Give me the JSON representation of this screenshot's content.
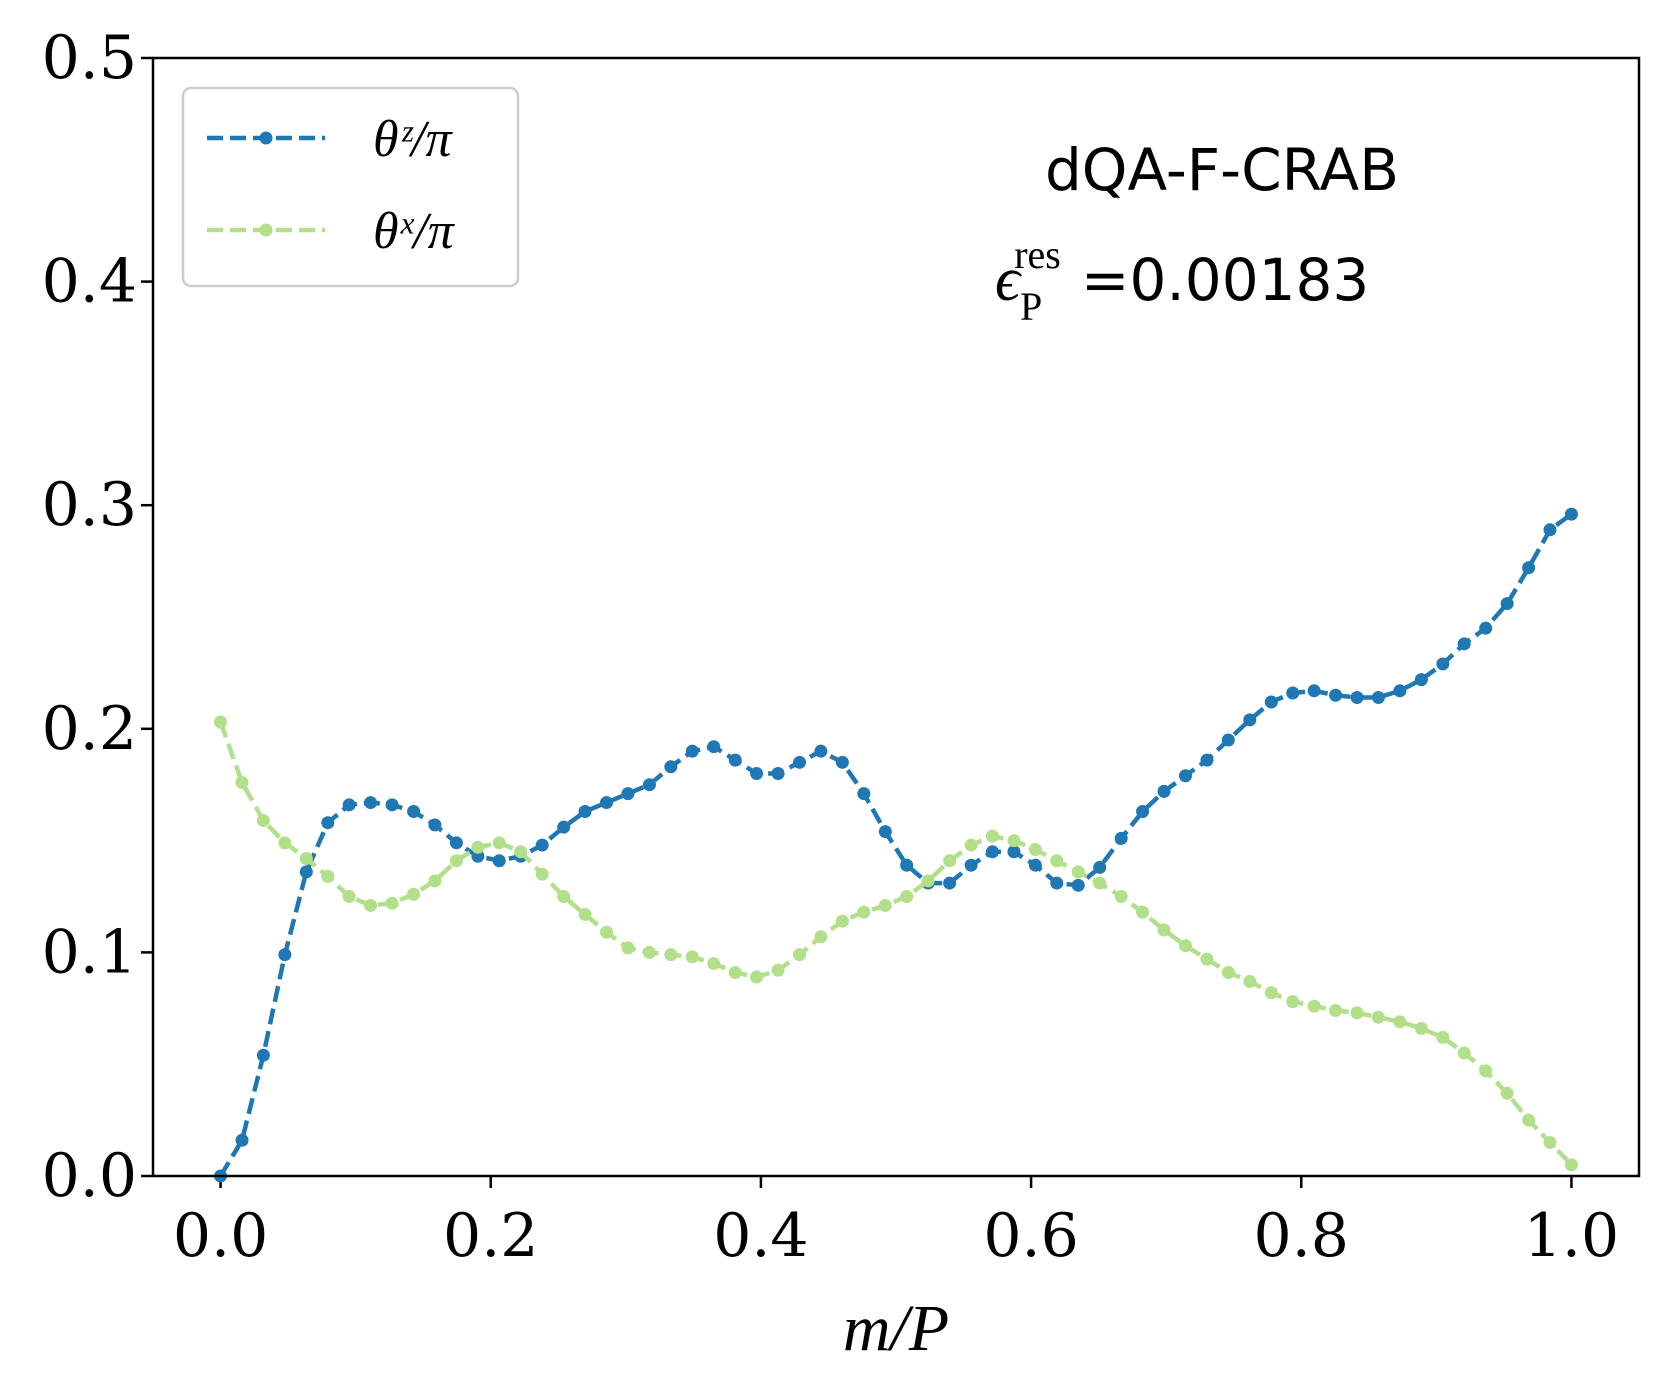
{
  "chart_data": {
    "type": "line",
    "xlabel": "m/P",
    "annotations": [
      {
        "text": "dQA-F-CRAB"
      },
      {
        "symbol": "ϵ",
        "subscript": "P",
        "superscript": "res",
        "text": "=0.00183"
      }
    ],
    "x": [
      0,
      0.0159,
      0.0317,
      0.0476,
      0.0635,
      0.0794,
      0.0952,
      0.1111,
      0.127,
      0.1429,
      0.1587,
      0.1746,
      0.1905,
      0.2063,
      0.2222,
      0.2381,
      0.254,
      0.2698,
      0.2857,
      0.3016,
      0.3175,
      0.3333,
      0.3492,
      0.3651,
      0.381,
      0.3968,
      0.4127,
      0.4286,
      0.4444,
      0.4603,
      0.4762,
      0.4921,
      0.5079,
      0.5238,
      0.5397,
      0.5556,
      0.5714,
      0.5873,
      0.6032,
      0.619,
      0.6349,
      0.6508,
      0.6667,
      0.6825,
      0.6984,
      0.7143,
      0.7302,
      0.746,
      0.7619,
      0.7778,
      0.7937,
      0.8095,
      0.8254,
      0.8413,
      0.8571,
      0.873,
      0.8889,
      0.9048,
      0.9206,
      0.9365,
      0.9524,
      0.9683,
      0.9841,
      1
    ],
    "series": [
      {
        "name": "θᶻ/π",
        "color": "#1f77b4",
        "values": [
          0,
          0.016,
          0.054,
          0.099,
          0.136,
          0.158,
          0.166,
          0.167,
          0.166,
          0.163,
          0.157,
          0.149,
          0.143,
          0.141,
          0.143,
          0.148,
          0.156,
          0.163,
          0.167,
          0.171,
          0.175,
          0.183,
          0.19,
          0.192,
          0.186,
          0.18,
          0.18,
          0.185,
          0.19,
          0.185,
          0.171,
          0.154,
          0.139,
          0.131,
          0.131,
          0.139,
          0.145,
          0.145,
          0.139,
          0.131,
          0.13,
          0.138,
          0.151,
          0.163,
          0.172,
          0.179,
          0.186,
          0.195,
          0.204,
          0.212,
          0.216,
          0.217,
          0.215,
          0.214,
          0.214,
          0.217,
          0.222,
          0.229,
          0.238,
          0.245,
          0.256,
          0.272,
          0.289,
          0.296
        ]
      },
      {
        "name": "θˣ/π",
        "color": "#b2df8a",
        "values": [
          0.203,
          0.176,
          0.159,
          0.149,
          0.142,
          0.134,
          0.125,
          0.121,
          0.122,
          0.126,
          0.132,
          0.141,
          0.147,
          0.149,
          0.145,
          0.135,
          0.125,
          0.117,
          0.109,
          0.102,
          0.1,
          0.099,
          0.098,
          0.095,
          0.091,
          0.089,
          0.092,
          0.099,
          0.107,
          0.114,
          0.118,
          0.121,
          0.125,
          0.132,
          0.141,
          0.148,
          0.152,
          0.15,
          0.146,
          0.141,
          0.136,
          0.131,
          0.125,
          0.118,
          0.11,
          0.103,
          0.097,
          0.091,
          0.087,
          0.082,
          0.078,
          0.076,
          0.074,
          0.073,
          0.071,
          0.069,
          0.066,
          0.062,
          0.055,
          0.047,
          0.037,
          0.025,
          0.015,
          0.005
        ]
      }
    ],
    "xlim": [
      -0.05,
      1.05
    ],
    "ylim": [
      0,
      0.5
    ],
    "xticks": [
      {
        "value": 0,
        "label": "0.0"
      },
      0.2,
      0.4,
      0.6,
      0.8,
      {
        "value": 1,
        "label": "1.0"
      }
    ],
    "yticks": [
      {
        "value": 0,
        "label": "0.0"
      },
      0.1,
      0.2,
      0.3,
      0.4,
      0.5
    ],
    "legend": "upper left"
  }
}
